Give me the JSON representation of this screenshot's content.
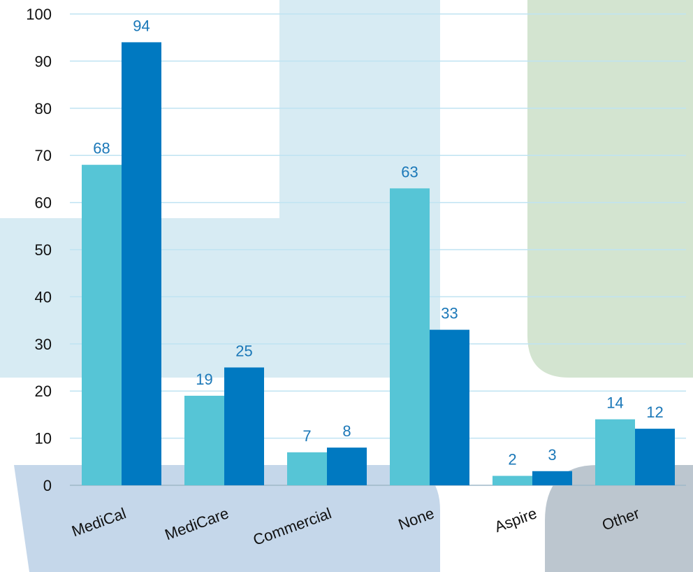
{
  "chart_data": {
    "type": "bar",
    "title": "",
    "xlabel": "",
    "ylabel": "",
    "categories": [
      "MediCal",
      "MediCare",
      "Commercial",
      "None",
      "Aspire",
      "Other"
    ],
    "series": [
      {
        "values": [
          68,
          19,
          7,
          63,
          2,
          14
        ],
        "color": "#56c5d6"
      },
      {
        "values": [
          94,
          25,
          8,
          33,
          3,
          12
        ],
        "color": "#0079c1"
      }
    ],
    "ylim": [
      0,
      100
    ],
    "yticks": [
      0,
      10,
      20,
      30,
      40,
      50,
      60,
      70,
      80,
      90,
      100
    ],
    "grid": true,
    "legend": "none"
  },
  "colors": {
    "gridline": "#bfe3f2",
    "data_label": "#1b78b8",
    "bg_light_blue": "#d7ebf3",
    "bg_green": "#d3e4d0",
    "bg_periwinkle": "#c5d7ea",
    "bg_gray": "#bcc6cf"
  }
}
